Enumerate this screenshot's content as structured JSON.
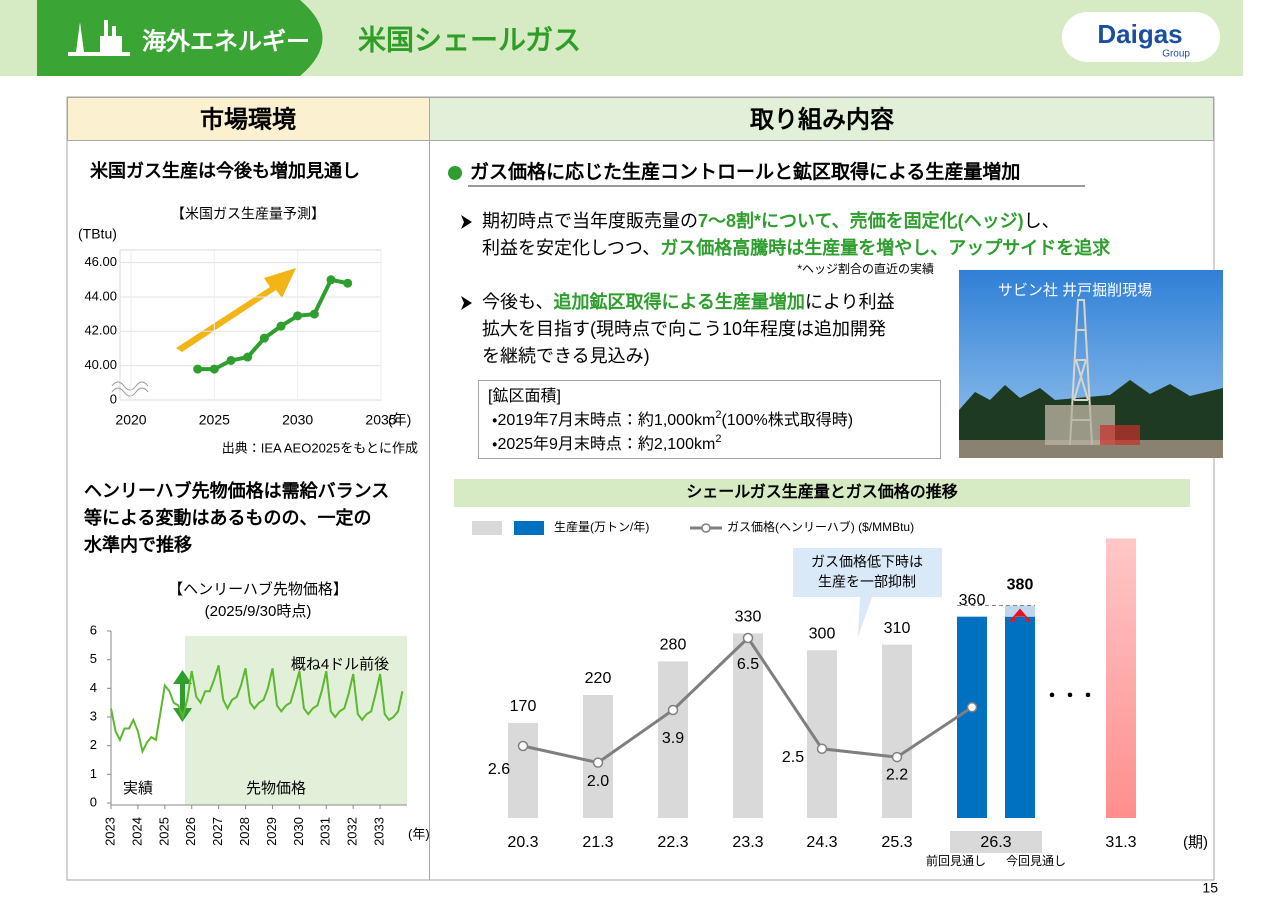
{
  "header": {
    "section": "海外エネルギー",
    "title": "米国シェールガス",
    "logo": "Daigas",
    "logo_sub": "Group"
  },
  "page_number": "15",
  "left": {
    "heading": "市場環境",
    "point1": "米国ガス生産は今後も増加見通し",
    "point2_lines": [
      "ヘンリーハブ先物価格は需給バランス",
      "等による変動はあるものの、一定の",
      "水準内で推移"
    ]
  },
  "right": {
    "heading": "取り組み内容",
    "emphasis_color": "#2e9e2e",
    "bullet": "ガス価格に応じた生産コントロールと鉱区取得による生産量増加",
    "item1": {
      "lines": [
        [
          {
            "text": "期初時点で当年度販売量の"
          },
          {
            "text": "7～8割*について、売価を固定化(ヘッジ)",
            "em": true
          },
          {
            "text": "し、"
          }
        ],
        [
          {
            "text": "利益を安定化しつつ、"
          },
          {
            "text": "ガス価格高騰時は生産量を増やし、アップサイドを追求",
            "em": true
          }
        ]
      ],
      "note": "*ヘッジ割合の直近の実績"
    },
    "item2": {
      "lines": [
        [
          {
            "text": "今後も、"
          },
          {
            "text": "追加鉱区取得による生産量増加",
            "em": true
          },
          {
            "text": "により利益"
          }
        ],
        [
          {
            "text": "拡大を目指す(現時点で向こう10年程度は追加開発"
          }
        ],
        [
          {
            "text": "を継続できる見込み)"
          }
        ]
      ]
    },
    "area_box": {
      "title": "[鉱区面積]",
      "rows": [
        {
          "text": "・2019年7月末時点：約1,000km",
          "sup": "2",
          "tail": "(100%株式取得時)"
        },
        {
          "text": "・2025年9月末時点：約2,100km",
          "sup": "2"
        }
      ]
    },
    "photo_caption": "サビン社 井戸掘削現場"
  },
  "chart_data": [
    {
      "type": "line",
      "title": "【米国ガス生産量予測】",
      "y_unit": "(TBtu)",
      "x_unit": "(年)",
      "source": "出典：IEA AEO2025をもとに作成",
      "x": [
        2024,
        2025,
        2026,
        2027,
        2028,
        2029,
        2030,
        2031,
        2032,
        2033
      ],
      "series": [
        {
          "color": "#2e9e2e",
          "values": [
            39.8,
            39.8,
            40.3,
            40.5,
            41.6,
            42.3,
            42.9,
            43.0,
            45.0,
            44.8
          ]
        }
      ],
      "xlim": [
        2020,
        2035
      ],
      "xticks": [
        2020,
        2025,
        2030,
        2035
      ],
      "ylim": [
        38,
        46.5
      ],
      "yticks": [
        {
          "value": 40,
          "label": "40.00"
        },
        {
          "value": 42,
          "label": "42.00"
        },
        {
          "value": 44,
          "label": "44.00"
        },
        {
          "value": 46,
          "label": "46.00"
        }
      ],
      "y_break_label": "0",
      "grid": true
    },
    {
      "type": "line",
      "title_lines": [
        "【ヘンリーハブ先物価格】",
        "(2025/9/30時点)"
      ],
      "x_unit": "(年)",
      "annotations": [
        "実績",
        "先物価格",
        "概ね4ドル前後"
      ],
      "x": [
        2023.0,
        2023.17,
        2023.33,
        2023.5,
        2023.67,
        2023.83,
        2024.0,
        2024.17,
        2024.33,
        2024.5,
        2024.67,
        2024.83,
        2025.0,
        2025.17,
        2025.33,
        2025.5,
        2025.67,
        2025.83,
        2026.0,
        2026.17,
        2026.33,
        2026.5,
        2026.67,
        2026.83,
        2027.0,
        2027.17,
        2027.33,
        2027.5,
        2027.67,
        2027.83,
        2028.0,
        2028.17,
        2028.33,
        2028.5,
        2028.67,
        2028.83,
        2029.0,
        2029.17,
        2029.33,
        2029.5,
        2029.67,
        2029.83,
        2030.0,
        2030.17,
        2030.33,
        2030.5,
        2030.67,
        2030.83,
        2031.0,
        2031.17,
        2031.33,
        2031.5,
        2031.67,
        2031.83,
        2032.0,
        2032.17,
        2032.33,
        2032.5,
        2032.67,
        2032.83,
        2033.0,
        2033.17,
        2033.33,
        2033.5,
        2033.67,
        2033.83
      ],
      "series": [
        {
          "color": "#5cb82e",
          "values": [
            3.3,
            2.5,
            2.2,
            2.6,
            2.6,
            2.9,
            2.5,
            1.8,
            2.1,
            2.3,
            2.2,
            3.1,
            4.1,
            3.9,
            3.5,
            3.4,
            3.0,
            3.6,
            4.6,
            3.7,
            3.5,
            3.9,
            3.9,
            4.3,
            4.8,
            3.6,
            3.3,
            3.6,
            3.7,
            4.1,
            4.7,
            3.5,
            3.3,
            3.5,
            3.6,
            4.0,
            4.7,
            3.4,
            3.2,
            3.4,
            3.5,
            4.0,
            4.6,
            3.3,
            3.1,
            3.3,
            3.4,
            3.9,
            4.6,
            3.2,
            3.0,
            3.2,
            3.3,
            3.8,
            4.5,
            3.1,
            2.9,
            3.1,
            3.2,
            3.8,
            4.5,
            3.1,
            2.9,
            3.0,
            3.2,
            3.9
          ]
        }
      ],
      "xlim": [
        2023,
        2034
      ],
      "xticks": [
        2023,
        2024,
        2025,
        2026,
        2027,
        2028,
        2029,
        2030,
        2031,
        2032,
        2033
      ],
      "ylim": [
        0,
        6
      ],
      "yticks": [
        0,
        1,
        2,
        3,
        4,
        5,
        6
      ],
      "grid": false
    },
    {
      "type": "bar",
      "title": "シェールガス生産量とガス価格の推移",
      "x_unit": "(期)",
      "annotation": [
        "ガス価格低下時は",
        "生産を一部抑制"
      ],
      "gap_marker": "・・・",
      "categories": [
        "20.3",
        "21.3",
        "22.3",
        "23.3",
        "24.3",
        "25.3",
        "26.3",
        "31.3"
      ],
      "sub_labels": [
        "前回見通し",
        "今回見通し"
      ],
      "series": [
        {
          "name": "生産量(万トン/年)",
          "colors": [
            "#d9d9d9",
            "#d9d9d9",
            "#d9d9d9",
            "#d9d9d9",
            "#d9d9d9",
            "#d9d9d9",
            "#0070c0",
            "#ff9c9c"
          ],
          "values": [
            170,
            220,
            280,
            330,
            300,
            310,
            360,
            500
          ],
          "value_labels": [
            "170",
            "220",
            "280",
            "330",
            "300",
            "310",
            "360",
            null
          ]
        },
        {
          "color": "#0070c0",
          "highlight_color": "#e8131b",
          "values": [
            null,
            null,
            null,
            null,
            null,
            null,
            380,
            null
          ]
        },
        {
          "name": "ガス価格(ヘンリーハブ) ($/MMBtu)",
          "color": "#7f7f7f",
          "axis": "y2",
          "values": [
            2.6,
            2.0,
            3.9,
            6.5,
            2.5,
            2.2,
            4.0,
            null
          ],
          "value_labels": [
            "2.6",
            "2.0",
            "3.9",
            "6.5",
            "2.5",
            "2.2",
            null,
            null
          ]
        }
      ],
      "ylim": [
        0,
        515
      ],
      "y2lim": [
        0,
        10.4
      ]
    }
  ]
}
